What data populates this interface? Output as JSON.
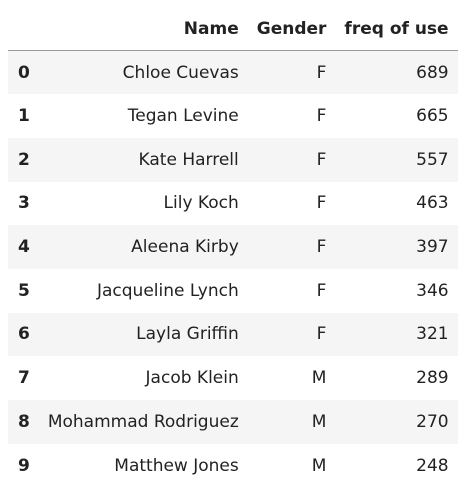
{
  "table": {
    "columns": [
      "",
      "Name",
      "Gender",
      "freq of use"
    ],
    "rows": [
      {
        "index": "0",
        "name": "Chloe Cuevas",
        "gender": "F",
        "freq": "689"
      },
      {
        "index": "1",
        "name": "Tegan Levine",
        "gender": "F",
        "freq": "665"
      },
      {
        "index": "2",
        "name": "Kate Harrell",
        "gender": "F",
        "freq": "557"
      },
      {
        "index": "3",
        "name": "Lily Koch",
        "gender": "F",
        "freq": "463"
      },
      {
        "index": "4",
        "name": "Aleena Kirby",
        "gender": "F",
        "freq": "397"
      },
      {
        "index": "5",
        "name": "Jacqueline Lynch",
        "gender": "F",
        "freq": "346"
      },
      {
        "index": "6",
        "name": "Layla Griffin",
        "gender": "F",
        "freq": "321"
      },
      {
        "index": "7",
        "name": "Jacob Klein",
        "gender": "M",
        "freq": "289"
      },
      {
        "index": "8",
        "name": "Mohammad Rodriguez",
        "gender": "M",
        "freq": "270"
      },
      {
        "index": "9",
        "name": "Matthew Jones",
        "gender": "M",
        "freq": "248"
      }
    ]
  },
  "colors": {
    "stripe": "#f5f5f5",
    "text": "#222222",
    "header_rule": "#9a9a9a"
  }
}
